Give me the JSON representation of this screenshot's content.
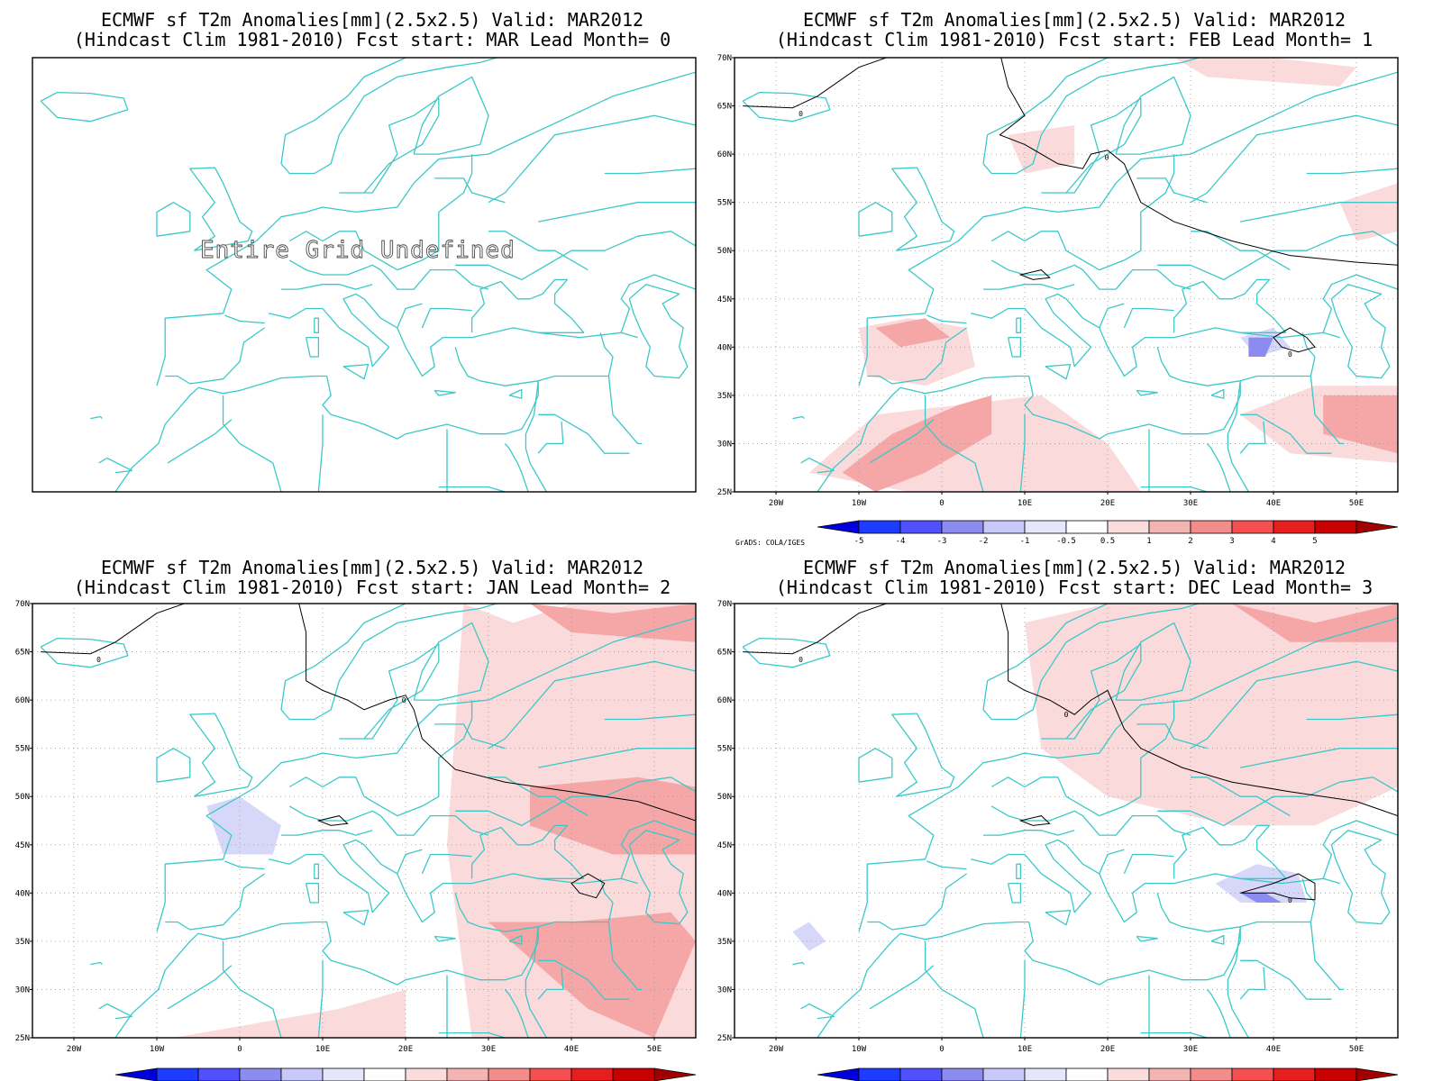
{
  "panels": [
    {
      "title_line1": "ECMWF sf T2m Anomalies[mm](2.5x2.5) Valid: MAR2012",
      "title_line2": "(Hindcast Clim 1981-2010) Fcst start: MAR  Lead Month= 0",
      "fcst_start": "MAR",
      "lead_month": 0,
      "message": "Entire Grid Undefined",
      "has_axes": false,
      "has_colorbar": false
    },
    {
      "title_line1": "ECMWF sf T2m Anomalies[mm](2.5x2.5) Valid: MAR2012",
      "title_line2": "(Hindcast Clim 1981-2010) Fcst start: FEB  Lead Month= 1",
      "fcst_start": "FEB",
      "lead_month": 1,
      "has_axes": true,
      "has_colorbar": true,
      "zero_contour_label": "0",
      "anomaly_regions": [
        {
          "level": 1,
          "lon": [
            -16,
            -8,
            2,
            12,
            20,
            24,
            8,
            -4
          ],
          "lat": [
            27,
            33,
            34,
            35,
            30,
            25,
            25,
            25
          ]
        },
        {
          "level": 2,
          "lon": [
            -12,
            -6,
            2,
            6,
            6,
            -2,
            -8
          ],
          "lat": [
            27,
            31,
            34,
            35,
            31,
            27,
            25
          ]
        },
        {
          "level": 1,
          "lon": [
            -10,
            -4,
            3,
            4,
            -2,
            -9
          ],
          "lat": [
            42,
            43,
            42,
            38,
            36,
            37
          ]
        },
        {
          "level": 2,
          "lon": [
            -8,
            -2,
            1,
            -5
          ],
          "lat": [
            42,
            43,
            41,
            40
          ]
        },
        {
          "level": 1,
          "lon": [
            36,
            45,
            55,
            55,
            42
          ],
          "lat": [
            33,
            36,
            36,
            28,
            29
          ]
        },
        {
          "level": 2,
          "lon": [
            46,
            55,
            55,
            46
          ],
          "lat": [
            35,
            35,
            29,
            31
          ]
        },
        {
          "level": 1,
          "lon": [
            48,
            55,
            55,
            50
          ],
          "lat": [
            55,
            57,
            52,
            51
          ]
        },
        {
          "level": 1,
          "lon": [
            28,
            40,
            50,
            48,
            32
          ],
          "lat": [
            70,
            70,
            69,
            67,
            68
          ]
        },
        {
          "level": 1,
          "lon": [
            8,
            16,
            16,
            10
          ],
          "lat": [
            62,
            63,
            59,
            58
          ]
        },
        {
          "level": -1,
          "lon": [
            36,
            40,
            42,
            38
          ],
          "lat": [
            41,
            42,
            40,
            39
          ]
        },
        {
          "level": -2,
          "lon": [
            37,
            40,
            39,
            37
          ],
          "lat": [
            41,
            41,
            39,
            39
          ]
        }
      ]
    },
    {
      "title_line1": "ECMWF sf T2m Anomalies[mm](2.5x2.5) Valid: MAR2012",
      "title_line2": "(Hindcast Clim 1981-2010) Fcst start: JAN  Lead Month= 2",
      "fcst_start": "JAN",
      "lead_month": 2,
      "has_axes": true,
      "has_colorbar": true,
      "zero_contour_label": "0",
      "anomaly_regions": [
        {
          "level": 1,
          "lon": [
            27,
            33,
            40,
            55,
            55,
            28,
            25
          ],
          "lat": [
            70,
            68,
            70,
            70,
            25,
            25,
            45
          ]
        },
        {
          "level": 2,
          "lon": [
            35,
            48,
            55,
            55,
            45,
            35
          ],
          "lat": [
            51,
            52,
            51,
            44,
            44,
            47
          ]
        },
        {
          "level": 2,
          "lon": [
            30,
            40,
            52,
            55,
            50,
            42,
            34
          ],
          "lat": [
            37,
            37,
            38,
            35,
            25,
            28,
            34
          ]
        },
        {
          "level": 2,
          "lon": [
            35,
            45,
            55,
            55,
            40
          ],
          "lat": [
            70,
            69,
            70,
            66,
            67
          ]
        },
        {
          "level": 1,
          "lon": [
            -8,
            12,
            20,
            20,
            0,
            -10
          ],
          "lat": [
            25,
            28,
            30,
            25,
            25,
            25
          ]
        },
        {
          "level": -1,
          "lon": [
            -4,
            0,
            5,
            4,
            -2
          ],
          "lat": [
            49,
            50,
            47,
            44,
            44
          ]
        }
      ]
    },
    {
      "title_line1": "ECMWF sf T2m Anomalies[mm](2.5x2.5) Valid: MAR2012",
      "title_line2": "(Hindcast Clim 1981-2010) Fcst start: DEC  Lead Month= 3",
      "fcst_start": "DEC",
      "lead_month": 3,
      "has_axes": true,
      "has_colorbar": true,
      "zero_contour_label": "0",
      "anomaly_regions": [
        {
          "level": 1,
          "lon": [
            10,
            20,
            30,
            40,
            55,
            55,
            45,
            35,
            20,
            12
          ],
          "lat": [
            68,
            70,
            70,
            70,
            70,
            51,
            47,
            47,
            50,
            55
          ]
        },
        {
          "level": 2,
          "lon": [
            35,
            45,
            55,
            55,
            42
          ],
          "lat": [
            70,
            68,
            70,
            66,
            66
          ]
        },
        {
          "level": -1,
          "lon": [
            33,
            38,
            43,
            44,
            36
          ],
          "lat": [
            41,
            43,
            42,
            39,
            39
          ]
        },
        {
          "level": -2,
          "lon": [
            36,
            39,
            41,
            38
          ],
          "lat": [
            40,
            40,
            39,
            39
          ]
        },
        {
          "level": -1,
          "lon": [
            -18,
            -16,
            -14,
            -16
          ],
          "lat": [
            36,
            37,
            35,
            34
          ]
        }
      ]
    }
  ],
  "axes": {
    "lon_range": [
      -25,
      55
    ],
    "lat_range": [
      25,
      70
    ],
    "lon_ticks": [
      -20,
      -10,
      0,
      10,
      20,
      30,
      40,
      50
    ],
    "lon_tick_labels": [
      "20W",
      "10W",
      "0",
      "10E",
      "20E",
      "30E",
      "40E",
      "50E"
    ],
    "lat_ticks": [
      25,
      30,
      35,
      40,
      45,
      50,
      55,
      60,
      65,
      70
    ],
    "lat_tick_labels": [
      "25N",
      "30N",
      "35N",
      "40N",
      "45N",
      "50N",
      "55N",
      "60N",
      "65N",
      "70N"
    ],
    "grid": true
  },
  "colorbar": {
    "labels": [
      "-5",
      "-4",
      "-3",
      "-2",
      "-1",
      "-0.5",
      "0.5",
      "1",
      "2",
      "3",
      "4",
      "5"
    ],
    "colors": [
      "#0000dc",
      "#1e3cff",
      "#5050ff",
      "#8c8cf0",
      "#c8c8fa",
      "#e6e6fa",
      "#ffffff",
      "#fadcdc",
      "#f5b4b4",
      "#f58c8c",
      "#f55050",
      "#e61e1e",
      "#c80000",
      "#a00000"
    ],
    "credit": "GrADS: COLA/IGES"
  },
  "map_colors": {
    "coast": "#3cc8c8",
    "contour": "#000000",
    "level_colors": {
      "-2": "#8c8cf0",
      "-1": "#d7d7fa",
      "1": "#fadada",
      "2": "#f5a6a6"
    }
  }
}
